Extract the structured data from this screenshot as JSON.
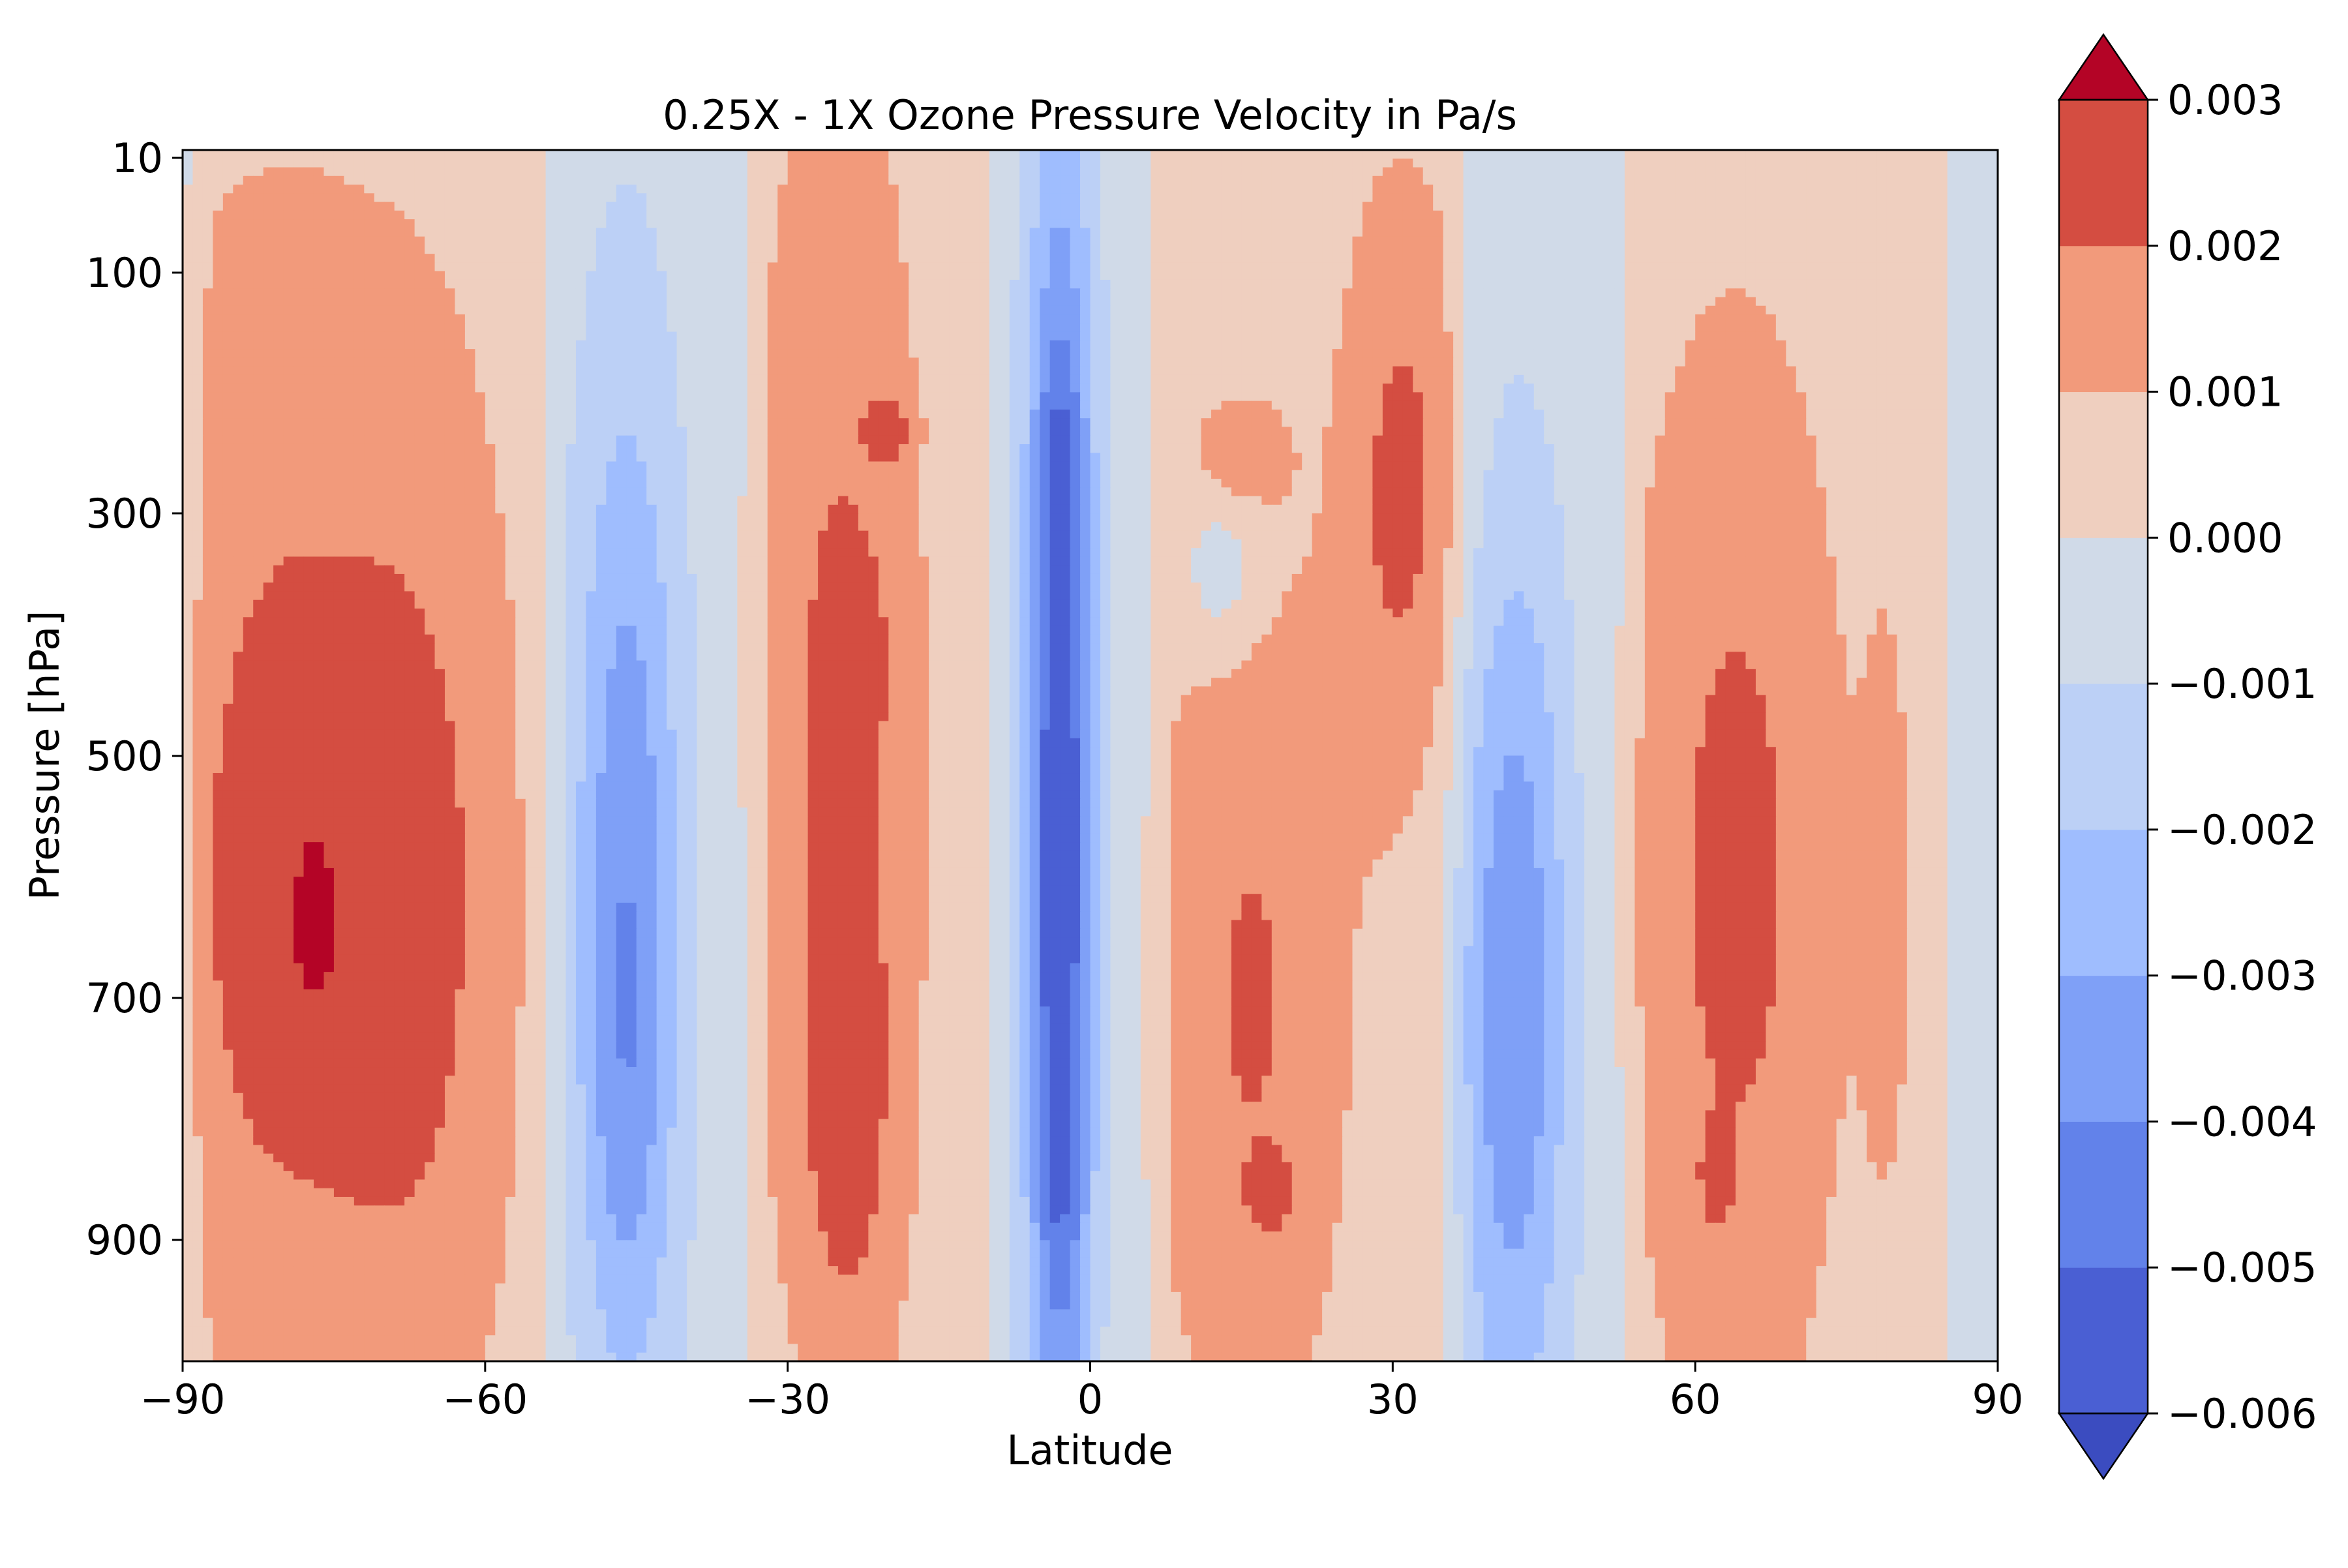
{
  "chart_data": {
    "type": "filled-contour",
    "title": "0.25X - 1X Ozone Pressure Velocity in Pa/s",
    "xlabel": "Latitude",
    "ylabel": "Pressure [hPa]",
    "xlim": [
      -90,
      90
    ],
    "ylim": [
      1000,
      10
    ],
    "y_axis_direction": "inverted",
    "x_ticks": [
      {
        "value": -90,
        "label": "−90"
      },
      {
        "value": -60,
        "label": "−60"
      },
      {
        "value": -30,
        "label": "−30"
      },
      {
        "value": 0,
        "label": "0"
      },
      {
        "value": 30,
        "label": "30"
      },
      {
        "value": 60,
        "label": "60"
      },
      {
        "value": 90,
        "label": "90"
      }
    ],
    "y_ticks": [
      {
        "value": 10,
        "label": "10"
      },
      {
        "value": 100,
        "label": "100"
      },
      {
        "value": 300,
        "label": "300"
      },
      {
        "value": 500,
        "label": "500"
      },
      {
        "value": 700,
        "label": "700"
      },
      {
        "value": 900,
        "label": "900"
      }
    ],
    "colormap": "coolwarm",
    "colorbar": {
      "extend": "both",
      "levels": [
        -0.006,
        -0.005,
        -0.004,
        -0.003,
        -0.002,
        -0.001,
        0.0,
        0.001,
        0.002,
        0.003
      ],
      "tick_labels": [
        "−0.006",
        "−0.005",
        "−0.004",
        "−0.003",
        "−0.002",
        "−0.001",
        "0.000",
        "0.001",
        "0.002",
        "0.003"
      ],
      "band_colors": [
        "#4a5fd3",
        "#6282ea",
        "#7fa0f7",
        "#9fbdfe",
        "#bcd0f6",
        "#d0dae8",
        "#efcfbf",
        "#f29a7b",
        "#d44d41"
      ],
      "under_color": "#3b4cc0",
      "over_color": "#b40426"
    },
    "field": {
      "lat_step": 1,
      "p_levels": [
        10,
        60,
        100,
        200,
        250,
        300,
        400,
        500,
        600,
        700,
        800,
        850,
        900,
        950,
        1000
      ],
      "features": [
        {
          "lat": -82,
          "p": 600,
          "dlat": 11,
          "dp": 420,
          "amp": 0.0018
        },
        {
          "lat": -67,
          "p": 620,
          "dlat": 10,
          "dp": 420,
          "amp": 0.0018
        },
        {
          "lat": -77,
          "p": 640,
          "dlat": 2.5,
          "dp": 90,
          "amp": 0.0007
        },
        {
          "lat": -80,
          "p": 150,
          "dlat": 14,
          "dp": 160,
          "amp": 0.0004
        },
        {
          "lat": -46,
          "p": 600,
          "dlat": 5.5,
          "dp": 420,
          "amp": -0.0032
        },
        {
          "lat": -46,
          "p": 800,
          "dlat": 4,
          "dp": 200,
          "amp": -0.0008
        },
        {
          "lat": -25,
          "p": 430,
          "dlat": 8,
          "dp": 480,
          "amp": 0.0016
        },
        {
          "lat": -24,
          "p": 800,
          "dlat": 5,
          "dp": 210,
          "amp": 0.0014
        },
        {
          "lat": -23,
          "p": 420,
          "dlat": 3,
          "dp": 80,
          "amp": 0.0008
        },
        {
          "lat": -20,
          "p": 230,
          "dlat": 2,
          "dp": 25,
          "amp": 0.0016
        },
        {
          "lat": -3,
          "p": 560,
          "dlat": 3.4,
          "dp": 560,
          "amp": -0.0056
        },
        {
          "lat": -3,
          "p": 820,
          "dlat": 2.2,
          "dp": 120,
          "amp": -0.0008
        },
        {
          "lat": -3,
          "p": 230,
          "dlat": 2.4,
          "dp": 70,
          "amp": -0.0008
        },
        {
          "lat": 16,
          "p": 700,
          "dlat": 9,
          "dp": 350,
          "amp": 0.0016
        },
        {
          "lat": 31,
          "p": 280,
          "dlat": 6,
          "dp": 240,
          "amp": 0.0018
        },
        {
          "lat": 18,
          "p": 860,
          "dlat": 2,
          "dp": 30,
          "amp": 0.0012
        },
        {
          "lat": 15,
          "p": 250,
          "dlat": 4,
          "dp": 40,
          "amp": 0.0012
        },
        {
          "lat": 13,
          "p": 350,
          "dlat": 4,
          "dp": 70,
          "amp": -0.0014
        },
        {
          "lat": 42,
          "p": 700,
          "dlat": 5.5,
          "dp": 380,
          "amp": -0.0034
        },
        {
          "lat": 64,
          "p": 600,
          "dlat": 10,
          "dp": 430,
          "amp": 0.0018
        },
        {
          "lat": 62,
          "p": 850,
          "dlat": 1.5,
          "dp": 40,
          "amp": 0.001
        },
        {
          "lat": 79,
          "p": 620,
          "dlat": 2.5,
          "dp": 260,
          "amp": 0.0008
        }
      ],
      "background_bands": [
        {
          "lat_min": -90,
          "lat_max": -52,
          "value": 0.0005
        },
        {
          "lat_min": -35,
          "lat_max": -8,
          "value": 0.0005
        },
        {
          "lat_min": 5,
          "lat_max": 38,
          "value": 0.0005
        },
        {
          "lat_min": 52,
          "lat_max": 86,
          "value": 0.0005
        }
      ]
    }
  }
}
